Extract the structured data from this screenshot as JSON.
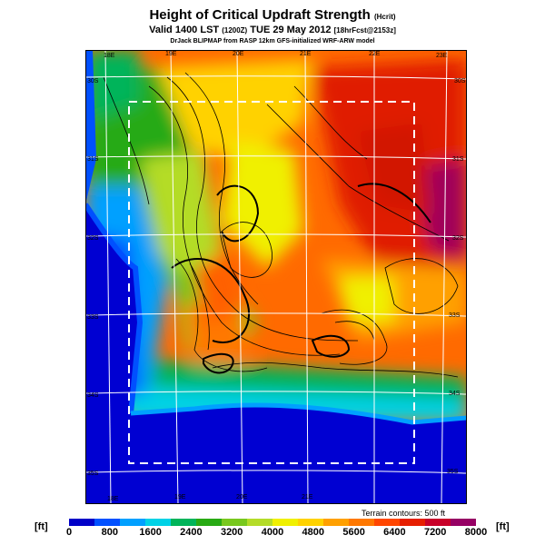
{
  "title": {
    "main": "Height of Critical Updraft Strength",
    "param": "(Hcrit)",
    "valid": "Valid 1400 LST",
    "utc": "(1200Z)",
    "date": "TUE 29 May 2012",
    "fcst": "[18hrFcst@2153z]",
    "credit": "DrJack BLIPMAP from RASP 12km GFS-initialized WRF-ARW model"
  },
  "map": {
    "lon_labels_top": [
      "18E",
      "19E",
      "20E",
      "21E",
      "22E",
      "23E"
    ],
    "lon_labels_bottom": [
      "18E",
      "19E",
      "20E",
      "21E"
    ],
    "lat_labels_right": [
      "30S",
      "31S",
      "32S",
      "33S",
      "34S",
      "35S"
    ],
    "lat_labels_left": [
      "30S",
      "31S",
      "32S",
      "33S",
      "34S",
      "35S"
    ],
    "terrain_note": "Terrain contours: 500 ft"
  },
  "legend": {
    "unit_left": "[ft]",
    "unit_right": "[ft]",
    "ticks": [
      "0",
      "800",
      "1600",
      "2400",
      "3200",
      "4000",
      "4800",
      "5600",
      "6400",
      "7200",
      "8000"
    ],
    "colors": [
      "#0000c8",
      "#0050ff",
      "#00a0ff",
      "#00d2e6",
      "#00b45a",
      "#28aa14",
      "#78c81e",
      "#b4dc28",
      "#f0f000",
      "#ffd200",
      "#ffa000",
      "#ff7800",
      "#ff4600",
      "#e61e00",
      "#c80028",
      "#960064"
    ]
  }
}
